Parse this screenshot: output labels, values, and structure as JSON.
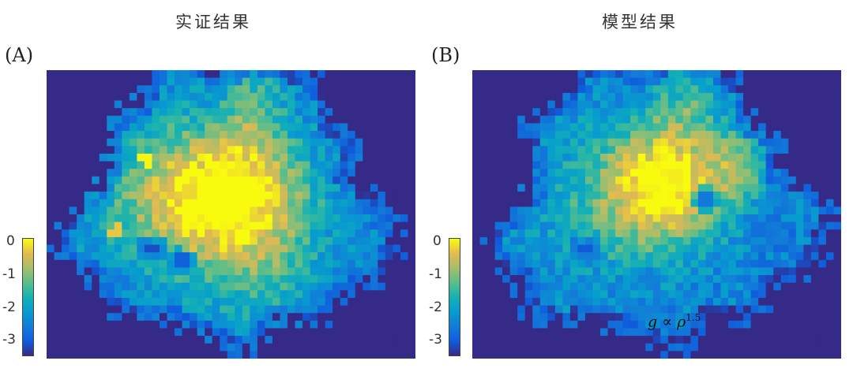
{
  "chart_data": [
    {
      "type": "heatmap",
      "panel_label": "(A)",
      "title": "实证结果",
      "grid": false,
      "legend_position": "left",
      "colorbar": {
        "ticks": [
          "0",
          "-1",
          "-2",
          "-3"
        ],
        "range": [
          -3.5,
          0
        ],
        "colormap": "parula"
      },
      "field": {
        "background": -3.5,
        "centers": [
          {
            "x": 0.5,
            "y": 0.43,
            "sx": 0.14,
            "sy": 0.16,
            "a": 1.25
          },
          {
            "x": 0.28,
            "y": 0.46,
            "sx": 0.13,
            "sy": 0.2,
            "a": 0.45
          },
          {
            "x": 0.58,
            "y": 0.7,
            "sx": 0.12,
            "sy": 0.17,
            "a": 0.35
          },
          {
            "x": 0.56,
            "y": 0.12,
            "sx": 0.06,
            "sy": 0.12,
            "a": 0.4
          }
        ],
        "hotspots": [
          {
            "x": 0.27,
            "y": 0.31,
            "v": -0.05
          },
          {
            "x": 0.4,
            "y": 0.49,
            "v": 0.0
          },
          {
            "x": 0.39,
            "y": 0.42,
            "v": -0.25
          },
          {
            "x": 0.19,
            "y": 0.56,
            "v": -0.35
          },
          {
            "x": 0.05,
            "y": 0.38,
            "v": -1.05
          }
        ],
        "coldspots": [
          {
            "x": 0.11,
            "y": 0.33,
            "v": -3.4
          },
          {
            "x": 0.29,
            "y": 0.62,
            "v": -3.2
          },
          {
            "x": 0.36,
            "y": 0.66,
            "v": -3.0
          },
          {
            "x": 0.21,
            "y": 0.73,
            "v": -2.7
          },
          {
            "x": 0.73,
            "y": 0.78,
            "v": -2.6
          }
        ]
      }
    },
    {
      "type": "heatmap",
      "panel_label": "(B)",
      "title": "模型结果",
      "grid": false,
      "legend_position": "left",
      "colorbar": {
        "ticks": [
          "0",
          "-1",
          "-2",
          "-3"
        ],
        "range": [
          -3.5,
          0
        ],
        "colormap": "parula"
      },
      "annotation": {
        "base": "g ∝ ρ",
        "exponent": "1.5"
      },
      "field": {
        "background": -3.5,
        "centers": [
          {
            "x": 0.52,
            "y": 0.4,
            "sx": 0.12,
            "sy": 0.15,
            "a": 1.25
          },
          {
            "x": 0.3,
            "y": 0.48,
            "sx": 0.14,
            "sy": 0.2,
            "a": 0.25
          },
          {
            "x": 0.72,
            "y": 0.33,
            "sx": 0.05,
            "sy": 0.08,
            "a": 0.55
          },
          {
            "x": 0.58,
            "y": 0.12,
            "sx": 0.06,
            "sy": 0.1,
            "a": 0.35
          }
        ],
        "hotspots": [
          {
            "x": 0.48,
            "y": 0.41,
            "v": -0.05
          },
          {
            "x": 0.55,
            "y": 0.37,
            "v": -0.1
          }
        ],
        "coldspots": [
          {
            "x": 0.12,
            "y": 0.34,
            "v": -3.3
          },
          {
            "x": 0.31,
            "y": 0.62,
            "v": -3.1
          },
          {
            "x": 0.63,
            "y": 0.45,
            "v": -2.7
          },
          {
            "x": 0.77,
            "y": 0.55,
            "v": -2.8
          },
          {
            "x": 0.47,
            "y": 0.72,
            "v": -2.6
          }
        ]
      }
    }
  ]
}
